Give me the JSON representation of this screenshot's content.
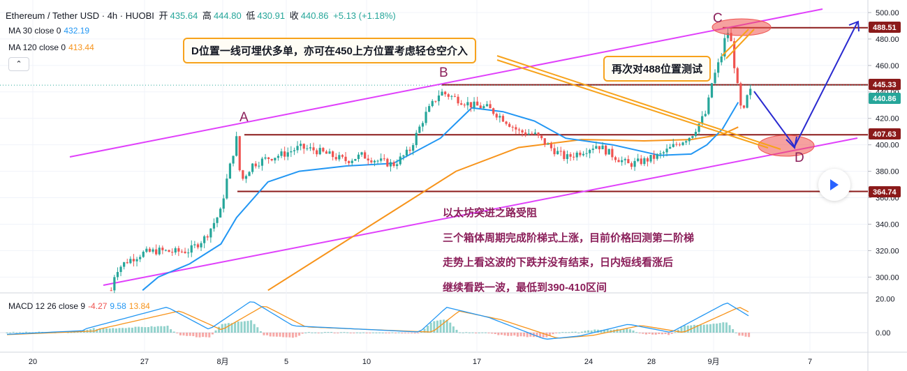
{
  "header": {
    "symbol": "Ethereum / Tether USD · 4h · HUOBI",
    "open_label": "开",
    "open": "435.64",
    "high_label": "高",
    "high": "444.80",
    "low_label": "低",
    "low": "430.91",
    "close_label": "收",
    "close": "440.86",
    "change": "+5.13 (+1.18%)"
  },
  "indicators": {
    "ma30_label": "MA 30 close 0",
    "ma30_value": "432.19",
    "ma120_label": "MA 120 close 0",
    "ma120_value": "413.44",
    "macd_label": "MACD 12 26 close 9",
    "macd_hist": "-4.27",
    "macd_line": "9.58",
    "macd_signal": "13.84",
    "collapse_icon": "chevron-up-icon"
  },
  "annotations": {
    "callout_d": "D位置一线可埋伏多单，亦可在450上方位置考虑轻仓空介入",
    "callout_retest": "再次对488位置测试",
    "point_a": "A",
    "point_b": "B",
    "point_c": "C",
    "point_d": "D",
    "analysis_lines": [
      "以太坊突进之路受阻",
      "三个箱体周期完成阶梯式上涨，目前价格回测第二阶梯",
      "走势上看这波的下跌并没有结束，日内短线看涨后",
      "继续看跌一波，最低到390-410区间"
    ]
  },
  "colors": {
    "up": "#26a69a",
    "down": "#ef5350",
    "ma30": "#2196f3",
    "ma120": "#f7931a",
    "channel": "#e040fb",
    "level_line": "#8b1a1a",
    "annotation_text": "#8b1f5a",
    "callout_border": "#f7a21b",
    "arrow": "#2a2ad0"
  },
  "chart_data": {
    "type": "candlestick",
    "title": "Ethereum / Tether USD · 4h · HUOBI",
    "x_ticks": [
      "20",
      "27",
      "8月",
      "5",
      "10",
      "17",
      "24",
      "28",
      "9月",
      "7"
    ],
    "y_ticks": [
      300,
      320,
      340,
      360,
      380,
      400,
      420,
      440,
      460,
      480,
      500
    ],
    "y_range": [
      290,
      505
    ],
    "price_labels": [
      {
        "label": "488.51",
        "value": 488.51
      },
      {
        "label": "445.33",
        "value": 445.33
      },
      {
        "label": "440.86",
        "value": 440.86
      },
      {
        "label": "407.63",
        "value": 407.63
      },
      {
        "label": "364.74",
        "value": 364.74
      }
    ],
    "current_price": 440.86,
    "horizontal_levels": [
      488.51,
      445.33,
      407.63,
      364.74
    ],
    "price_path": [
      [
        "07-25",
        290
      ],
      [
        "07-25",
        305
      ],
      [
        "07-26",
        312
      ],
      [
        "07-27",
        318
      ],
      [
        "07-28",
        320
      ],
      [
        "07-29",
        319
      ],
      [
        "07-30",
        320
      ],
      [
        "07-31",
        330
      ],
      [
        "08-01",
        350
      ],
      [
        "08-01",
        368
      ],
      [
        "08-02",
        405
      ],
      [
        "08-02",
        372
      ],
      [
        "08-03",
        385
      ],
      [
        "08-04",
        390
      ],
      [
        "08-05",
        393
      ],
      [
        "08-06",
        398
      ],
      [
        "08-07",
        396
      ],
      [
        "08-08",
        392
      ],
      [
        "08-09",
        388
      ],
      [
        "08-10",
        392
      ],
      [
        "08-11",
        388
      ],
      [
        "08-12",
        385
      ],
      [
        "08-13",
        395
      ],
      [
        "08-14",
        422
      ],
      [
        "08-15",
        440
      ],
      [
        "08-16",
        435
      ],
      [
        "08-17",
        430
      ],
      [
        "08-18",
        428
      ],
      [
        "08-19",
        420
      ],
      [
        "08-20",
        410
      ],
      [
        "08-21",
        408
      ],
      [
        "08-22",
        398
      ],
      [
        "08-23",
        390
      ],
      [
        "08-24",
        395
      ],
      [
        "08-25",
        400
      ],
      [
        "08-26",
        392
      ],
      [
        "08-27",
        385
      ],
      [
        "08-28",
        388
      ],
      [
        "08-29",
        392
      ],
      [
        "08-30",
        400
      ],
      [
        "08-31",
        407
      ],
      [
        "09-01",
        425
      ],
      [
        "09-01",
        445
      ],
      [
        "09-02",
        470
      ],
      [
        "09-02",
        488
      ],
      [
        "09-02",
        478
      ],
      [
        "09-03",
        440
      ],
      [
        "09-03",
        420
      ],
      [
        "09-03",
        435
      ],
      [
        "09-03",
        440.86
      ]
    ],
    "ma30": [
      [
        "07-27",
        290
      ],
      [
        "07-28",
        300
      ],
      [
        "07-30",
        310
      ],
      [
        "08-01",
        325
      ],
      [
        "08-02",
        345
      ],
      [
        "08-04",
        372
      ],
      [
        "08-06",
        380
      ],
      [
        "08-09",
        384
      ],
      [
        "08-12",
        386
      ],
      [
        "08-15",
        405
      ],
      [
        "08-17",
        428
      ],
      [
        "08-19",
        425
      ],
      [
        "08-21",
        418
      ],
      [
        "08-23",
        405
      ],
      [
        "08-26",
        400
      ],
      [
        "08-29",
        392
      ],
      [
        "08-31",
        393
      ],
      [
        "09-01",
        400
      ],
      [
        "09-02",
        412
      ],
      [
        "09-03",
        432.19
      ]
    ],
    "ma120": [
      [
        "08-04",
        290
      ],
      [
        "08-08",
        320
      ],
      [
        "08-12",
        350
      ],
      [
        "08-16",
        380
      ],
      [
        "08-20",
        398
      ],
      [
        "08-24",
        404
      ],
      [
        "08-28",
        403
      ],
      [
        "08-31",
        404
      ],
      [
        "09-01",
        406
      ],
      [
        "09-02",
        408
      ],
      [
        "09-03",
        413.44
      ]
    ],
    "channel_upper": [
      [
        318,
        420
      ],
      [
        1178,
        503
      ]
    ],
    "channel_lower": [
      [
        148,
        296
      ],
      [
        1228,
        406
      ]
    ],
    "projection_arrows": [
      [
        [
          "09-03",
          442
        ],
        [
          "09-05",
          400
        ]
      ],
      [
        [
          "09-05",
          400
        ],
        [
          "09-09",
          493
        ]
      ]
    ],
    "macd": {
      "y_ticks": [
        0.0,
        20.0
      ],
      "histogram_latest": -4.27,
      "macd_latest": 9.58,
      "signal_latest": 13.84
    }
  }
}
